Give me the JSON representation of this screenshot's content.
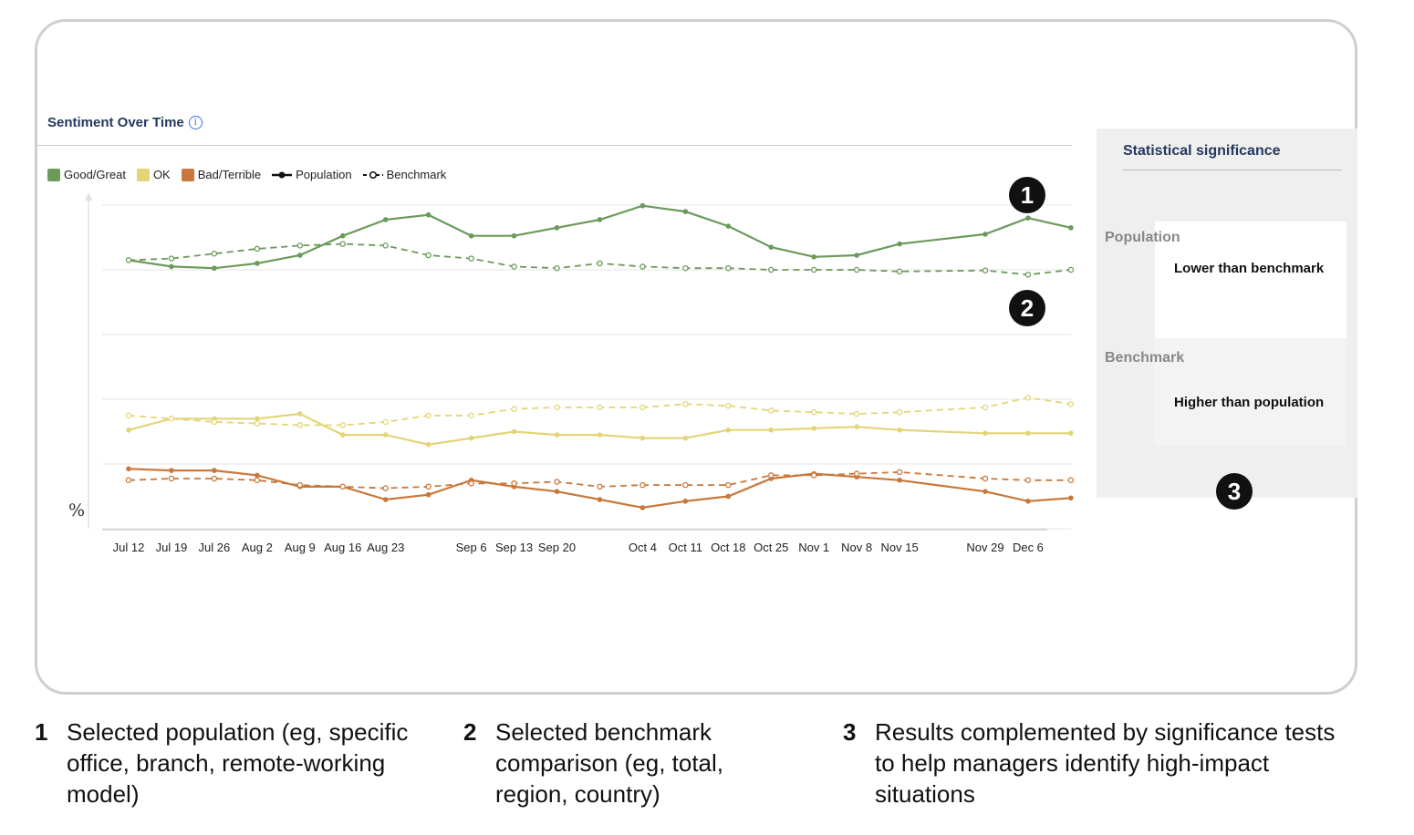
{
  "chart_title": "Sentiment Over Time",
  "info_icon": "info-icon",
  "legend": {
    "good": "Good/Great",
    "ok": "OK",
    "bad": "Bad/Terrible",
    "population": "Population",
    "benchmark": "Benchmark"
  },
  "colors": {
    "good": "#6b9a5a",
    "ok": "#e3d577",
    "bad": "#c9773a",
    "title": "#23395d"
  },
  "chart_data": {
    "type": "line",
    "title": "Sentiment Over Time",
    "ylabel": "%",
    "xlabel": "",
    "ylim": [
      0,
      100
    ],
    "grid": true,
    "legend_position": "top-left",
    "x_ticks": [
      "Jul 12",
      "Jul 19",
      "Jul 26",
      "Aug 2",
      "Aug 9",
      "Aug 16",
      "Aug 23",
      "Sep 6",
      "Sep 13",
      "Sep 20",
      "Oct 4",
      "Oct 11",
      "Oct 18",
      "Oct 25",
      "Nov 1",
      "Nov 8",
      "Nov 15",
      "Nov 29",
      "Dec 6"
    ],
    "x": [
      "Jul 12",
      "Jul 19",
      "Jul 26",
      "Aug 2",
      "Aug 9",
      "Aug 16",
      "Aug 23",
      "Aug 30",
      "Sep 6",
      "Sep 13",
      "Sep 20",
      "Sep 27",
      "Oct 4",
      "Oct 11",
      "Oct 18",
      "Oct 25",
      "Nov 1",
      "Nov 8",
      "Nov 15",
      "Nov 22",
      "Nov 29",
      "Dec 6",
      "Dec 13"
    ],
    "series": [
      {
        "name": "Good/Great",
        "group": "Population",
        "color_key": "good",
        "dashed": false,
        "values": [
          83.0,
          81.0,
          80.5,
          82.0,
          84.5,
          90.5,
          95.5,
          97.0,
          90.5,
          90.5,
          93.0,
          95.5,
          99.8,
          98.0,
          93.5,
          87.0,
          84.0,
          84.5,
          88.0,
          null,
          91.0,
          96.0,
          93.0
        ]
      },
      {
        "name": "Good/Great",
        "group": "Benchmark",
        "color_key": "good",
        "dashed": true,
        "values": [
          83.0,
          83.5,
          85.0,
          86.5,
          87.5,
          88.0,
          87.5,
          84.5,
          83.5,
          81.0,
          80.5,
          82.0,
          81.0,
          80.5,
          80.5,
          80.0,
          80.0,
          80.0,
          79.5,
          null,
          79.8,
          78.5,
          80.0
        ]
      },
      {
        "name": "OK",
        "group": "Population",
        "color_key": "ok",
        "dashed": false,
        "values": [
          30.5,
          34.0,
          34.0,
          34.0,
          35.5,
          29.0,
          29.0,
          26.0,
          28.0,
          30.0,
          29.0,
          29.0,
          28.0,
          28.0,
          30.5,
          30.5,
          31.0,
          31.5,
          30.5,
          null,
          29.5,
          29.5,
          29.5
        ]
      },
      {
        "name": "OK",
        "group": "Benchmark",
        "color_key": "ok",
        "dashed": true,
        "values": [
          35.0,
          34.0,
          33.0,
          32.5,
          32.0,
          32.0,
          33.0,
          35.0,
          35.0,
          37.0,
          37.5,
          37.5,
          37.5,
          38.5,
          38.0,
          36.5,
          36.0,
          35.5,
          36.0,
          null,
          37.5,
          40.5,
          38.5
        ]
      },
      {
        "name": "Bad/Terrible",
        "group": "Population",
        "color_key": "bad",
        "dashed": false,
        "values": [
          18.5,
          18.0,
          18.0,
          16.5,
          13.0,
          13.0,
          9.0,
          10.5,
          15.0,
          13.0,
          11.5,
          9.0,
          6.5,
          8.5,
          10.0,
          15.5,
          17.0,
          16.0,
          15.0,
          null,
          11.5,
          8.5,
          9.5
        ]
      },
      {
        "name": "Bad/Terrible",
        "group": "Benchmark",
        "color_key": "bad",
        "dashed": true,
        "values": [
          15.0,
          15.5,
          15.5,
          15.0,
          13.5,
          13.0,
          12.5,
          13.0,
          14.0,
          14.0,
          14.5,
          13.0,
          13.5,
          13.5,
          13.5,
          16.5,
          16.5,
          17.0,
          17.5,
          null,
          15.5,
          15.0,
          15.0
        ]
      }
    ]
  },
  "significance": {
    "title": "Statistical significance",
    "population_label": "Population",
    "population_value": "Lower than benchmark",
    "benchmark_label": "Benchmark",
    "benchmark_value": "Higher than population"
  },
  "markers": [
    "1",
    "2",
    "3"
  ],
  "captions": [
    {
      "num": "1",
      "text": "Selected population (eg, specific office, branch, remote-working model)"
    },
    {
      "num": "2",
      "text": "Selected benchmark comparison (eg, total, region, country)"
    },
    {
      "num": "3",
      "text": "Results complemented by significance tests to help managers identify high-impact situations"
    }
  ]
}
